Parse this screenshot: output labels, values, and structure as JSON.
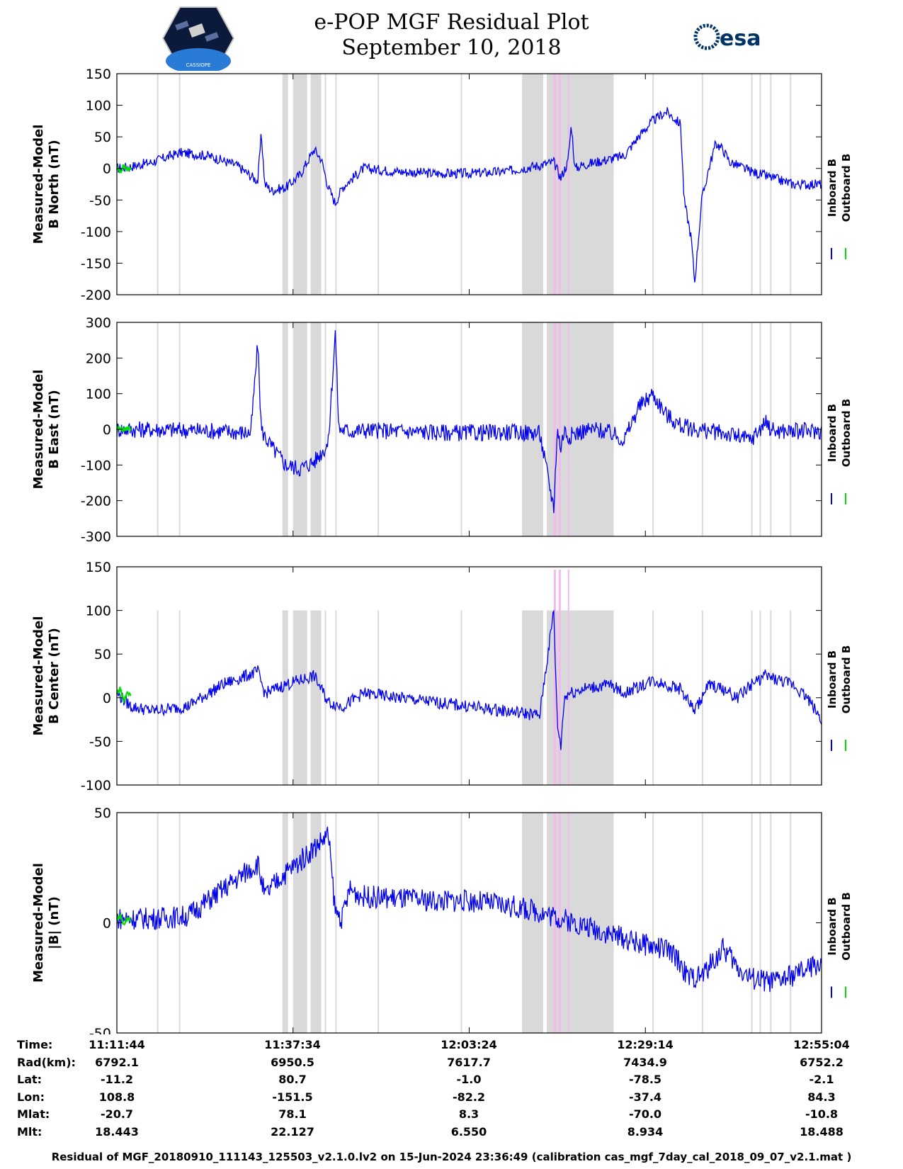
{
  "title_line1": "e-POP MGF Residual Plot",
  "title_line2": "September 10, 2018",
  "logos": {
    "left": "cassiope-logo",
    "right": "esa-logo",
    "right_text": "esa",
    "left_text": "CASSIOPE"
  },
  "colors": {
    "inboard": "#0000ee",
    "outboard": "#00dd00",
    "shade": "#d9d9d9",
    "pink": "#f5b8f0"
  },
  "legend": {
    "inboard": "Inboard B",
    "outboard": "Outboard B"
  },
  "chart_data": [
    {
      "type": "line",
      "ylabel_line1": "Measured-Model",
      "ylabel_line2": "B North (nT)",
      "ylim": [
        -200,
        150
      ],
      "yticks": [
        -200,
        -150,
        -100,
        -50,
        0,
        50,
        100,
        150
      ],
      "series": [
        {
          "name": "Inboard B",
          "x": [
            0,
            0.02,
            0.05,
            0.09,
            0.13,
            0.17,
            0.2,
            0.205,
            0.21,
            0.22,
            0.24,
            0.26,
            0.28,
            0.29,
            0.3,
            0.31,
            0.32,
            0.35,
            0.4,
            0.45,
            0.5,
            0.55,
            0.6,
            0.62,
            0.63,
            0.64,
            0.645,
            0.65,
            0.66,
            0.68,
            0.7,
            0.72,
            0.74,
            0.76,
            0.78,
            0.8,
            0.805,
            0.81,
            0.815,
            0.82,
            0.83,
            0.84,
            0.85,
            0.86,
            0.87,
            0.88,
            0.9,
            0.93,
            0.96,
            1.0
          ],
          "values": [
            0,
            3,
            10,
            25,
            20,
            5,
            -20,
            55,
            -25,
            -35,
            -30,
            -10,
            30,
            15,
            -30,
            -55,
            -30,
            0,
            -5,
            -8,
            -8,
            -5,
            5,
            10,
            -15,
            10,
            70,
            0,
            5,
            10,
            15,
            20,
            50,
            75,
            90,
            70,
            -50,
            -80,
            -110,
            -180,
            -50,
            0,
            40,
            30,
            10,
            5,
            -5,
            -15,
            -25,
            -25
          ]
        },
        {
          "name": "Outboard B",
          "x": [
            0,
            0.005,
            0.01,
            0.015,
            0.02
          ],
          "values": [
            0,
            -5,
            5,
            -3,
            2
          ]
        }
      ]
    },
    {
      "type": "line",
      "ylabel_line1": "Measured-Model",
      "ylabel_line2": "B East (nT)",
      "ylim": [
        -300,
        300
      ],
      "yticks": [
        -300,
        -200,
        -100,
        0,
        100,
        200,
        300
      ],
      "series": [
        {
          "name": "Inboard B",
          "x": [
            0,
            0.05,
            0.1,
            0.15,
            0.19,
            0.2,
            0.205,
            0.21,
            0.22,
            0.24,
            0.26,
            0.28,
            0.3,
            0.31,
            0.315,
            0.32,
            0.33,
            0.35,
            0.4,
            0.45,
            0.5,
            0.55,
            0.6,
            0.62,
            0.625,
            0.63,
            0.635,
            0.64,
            0.66,
            0.68,
            0.7,
            0.72,
            0.74,
            0.76,
            0.78,
            0.8,
            0.82,
            0.84,
            0.86,
            0.88,
            0.9,
            0.92,
            0.93,
            0.935,
            0.94,
            0.96,
            1.0
          ],
          "values": [
            0,
            0,
            -2,
            -5,
            -10,
            240,
            0,
            -20,
            -50,
            -100,
            -110,
            -90,
            -40,
            270,
            0,
            0,
            -5,
            -2,
            -5,
            -8,
            -10,
            -8,
            -10,
            -220,
            0,
            -50,
            0,
            -20,
            -5,
            0,
            -10,
            -30,
            60,
            100,
            40,
            10,
            0,
            -5,
            -10,
            -20,
            -30,
            20,
            0,
            -5,
            -5,
            -5,
            -5
          ]
        },
        {
          "name": "Outboard B",
          "x": [
            0,
            0.005,
            0.01,
            0.015,
            0.02
          ],
          "values": [
            0,
            5,
            -3,
            4,
            0
          ]
        }
      ]
    },
    {
      "type": "line",
      "ylabel_line1": "Measured-Model",
      "ylabel_line2": "B Center (nT)",
      "ylim": [
        -100,
        150
      ],
      "yticks": [
        -100,
        -50,
        0,
        50,
        100,
        150
      ],
      "series": [
        {
          "name": "Inboard B",
          "x": [
            0,
            0.02,
            0.05,
            0.1,
            0.15,
            0.2,
            0.21,
            0.24,
            0.28,
            0.3,
            0.32,
            0.35,
            0.4,
            0.45,
            0.5,
            0.55,
            0.6,
            0.62,
            0.625,
            0.63,
            0.635,
            0.64,
            0.66,
            0.7,
            0.72,
            0.76,
            0.8,
            0.82,
            0.84,
            0.86,
            0.88,
            0.9,
            0.92,
            0.94,
            0.96,
            0.98,
            1.0
          ],
          "values": [
            5,
            -10,
            -15,
            -10,
            15,
            30,
            5,
            15,
            25,
            -5,
            -10,
            5,
            0,
            -5,
            -10,
            -15,
            -20,
            100,
            -30,
            -55,
            0,
            5,
            10,
            15,
            5,
            20,
            10,
            -15,
            15,
            10,
            0,
            15,
            25,
            20,
            15,
            0,
            -25
          ]
        },
        {
          "name": "Outboard B",
          "x": [
            0,
            0.005,
            0.01,
            0.015,
            0.02
          ],
          "values": [
            5,
            10,
            -5,
            8,
            0
          ]
        }
      ]
    },
    {
      "type": "line",
      "ylabel_line1": "Measured-Model",
      "ylabel_line2": "|B| (nT)",
      "ylim": [
        -50,
        50
      ],
      "yticks": [
        -50,
        0,
        50
      ],
      "series": [
        {
          "name": "Inboard B",
          "x": [
            0,
            0.05,
            0.1,
            0.15,
            0.2,
            0.21,
            0.23,
            0.26,
            0.3,
            0.31,
            0.32,
            0.33,
            0.35,
            0.4,
            0.45,
            0.5,
            0.55,
            0.6,
            0.65,
            0.7,
            0.75,
            0.78,
            0.8,
            0.81,
            0.83,
            0.86,
            0.87,
            0.88,
            0.9,
            0.93,
            0.96,
            1.0
          ],
          "values": [
            2,
            2,
            3,
            15,
            27,
            12,
            20,
            28,
            40,
            5,
            2,
            15,
            12,
            11,
            10,
            10,
            8,
            5,
            0,
            -5,
            -10,
            -12,
            -18,
            -25,
            -24,
            -12,
            -15,
            -20,
            -25,
            -27,
            -24,
            -18
          ]
        },
        {
          "name": "Outboard B",
          "x": [
            0,
            0.005,
            0.01,
            0.015,
            0.02
          ],
          "values": [
            1,
            3,
            -1,
            2,
            1
          ]
        }
      ]
    }
  ],
  "time_axis": {
    "rows": [
      {
        "label": "Time:",
        "values": [
          "11:11:44",
          "11:37:34",
          "12:03:24",
          "12:29:14",
          "12:55:04"
        ]
      },
      {
        "label": "Rad(km):",
        "values": [
          "6792.1",
          "6950.5",
          "7617.7",
          "7434.9",
          "6752.2"
        ]
      },
      {
        "label": "Lat:",
        "values": [
          "-11.2",
          "80.7",
          "-1.0",
          "-78.5",
          "-2.1"
        ]
      },
      {
        "label": "Lon:",
        "values": [
          "108.8",
          "-151.5",
          "-82.2",
          "-37.4",
          "84.3"
        ]
      },
      {
        "label": "Mlat:",
        "values": [
          "-20.7",
          "78.1",
          "8.3",
          "-70.0",
          "-10.8"
        ]
      },
      {
        "label": "Mlt:",
        "values": [
          "18.443",
          "22.127",
          "6.550",
          "8.934",
          "18.488"
        ]
      }
    ]
  },
  "footer": "Residual of MGF_20180910_111143_125503_v2.1.0.lv2 on 15-Jun-2024 23:36:49 (calibration cas_mgf_7day_cal_2018_09_07_v2.1.mat )"
}
